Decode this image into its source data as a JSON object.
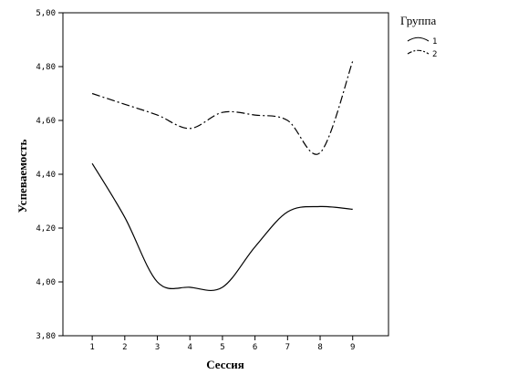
{
  "chart_data": {
    "type": "line",
    "xlabel": "Сессия",
    "ylabel": "Успеваемость",
    "x": [
      1,
      2,
      3,
      4,
      5,
      6,
      7,
      8,
      9
    ],
    "xlim": [
      0.1,
      10.1
    ],
    "ylim": [
      3.8,
      5.0
    ],
    "yticks": [
      3.8,
      4.0,
      4.2,
      4.4,
      4.6,
      4.8,
      5.0
    ],
    "ytick_labels": [
      "3,80",
      "4,00",
      "4,20",
      "4,40",
      "4,60",
      "4,80",
      "5,00"
    ],
    "xtick_labels": [
      "1",
      "2",
      "3",
      "4",
      "5",
      "6",
      "7",
      "8",
      "9"
    ],
    "grid": false,
    "legend": {
      "title": "Группа",
      "position": "top-right"
    },
    "series": [
      {
        "name": "1",
        "line_style": "solid",
        "values": [
          4.44,
          4.24,
          4.0,
          3.98,
          3.98,
          4.13,
          4.26,
          4.28,
          4.27
        ]
      },
      {
        "name": "2",
        "line_style": "dash-dot",
        "values": [
          4.7,
          4.66,
          4.62,
          4.57,
          4.63,
          4.62,
          4.6,
          4.48,
          4.82
        ]
      }
    ]
  }
}
